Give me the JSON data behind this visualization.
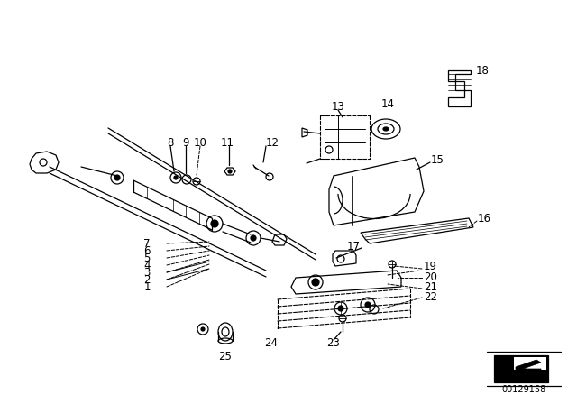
{
  "bg_color": "#ffffff",
  "diagram_id": "00129158",
  "lw": 0.9,
  "fs_label": 8.5,
  "fs_small": 7.0
}
